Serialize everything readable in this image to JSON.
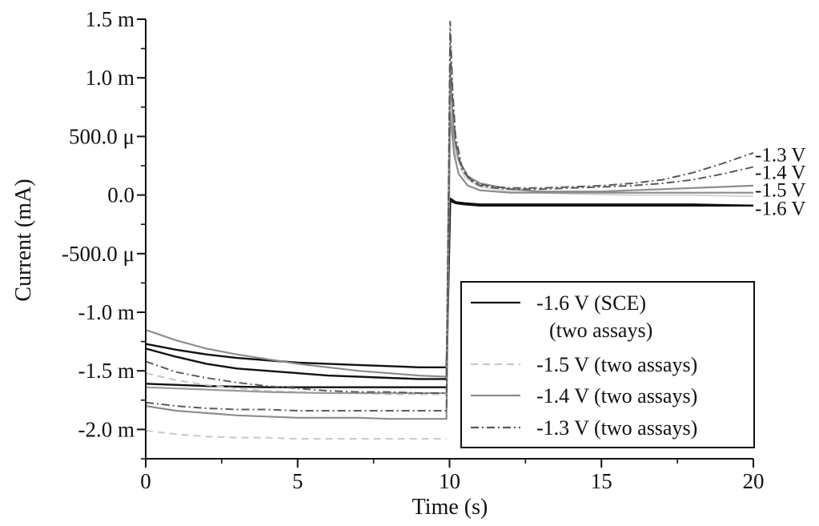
{
  "chart_data": {
    "type": "line",
    "xlabel": "Time (s)",
    "ylabel": "Current (mA)",
    "xlim": [
      0,
      20
    ],
    "ylim": [
      -2.25,
      1.5
    ],
    "x_ticks": [
      {
        "value": 0,
        "label": "0"
      },
      {
        "value": 5,
        "label": "5"
      },
      {
        "value": 10,
        "label": "10"
      },
      {
        "value": 15,
        "label": "15"
      },
      {
        "value": 20,
        "label": "20"
      }
    ],
    "y_ticks": [
      {
        "value": 1.5,
        "label": "1.5 m"
      },
      {
        "value": 1.0,
        "label": "1.0 m"
      },
      {
        "value": 0.5,
        "label": "500.0 μ"
      },
      {
        "value": 0.0,
        "label": "0.0"
      },
      {
        "value": -0.5,
        "label": "-500.0 μ"
      },
      {
        "value": -1.0,
        "label": "-1.0 m"
      },
      {
        "value": -1.5,
        "label": "-1.5 m"
      },
      {
        "value": -2.0,
        "label": "-2.0 m"
      }
    ],
    "grid": false,
    "legend_position": "bottom-right",
    "legend": [
      {
        "label": "-1.6 V (SCE)",
        "label2": "(two assays)",
        "color": "#111111",
        "dash": "solid"
      },
      {
        "label": "-1.5 V (two assays)",
        "color": "#c8c8c8",
        "dash": "dashed"
      },
      {
        "label": "-1.4 V (two assays)",
        "color": "#8c8c8c",
        "dash": "solid"
      },
      {
        "label": "-1.3 V (two assays)",
        "color": "#5a5a5a",
        "dash": "dashdot"
      }
    ],
    "end_labels": [
      {
        "text": "-1.3 V",
        "y": 0.35
      },
      {
        "text": "-1.4 V",
        "y": 0.2
      },
      {
        "text": "-1.5 V",
        "y": 0.05
      },
      {
        "text": "-1.6 V",
        "y": -0.11
      }
    ],
    "series": [
      {
        "name": "-1.6 V (SCE)",
        "color": "#111111",
        "dash": "solid",
        "width": 2.4,
        "x": [
          0,
          1,
          2,
          3,
          4,
          5,
          6,
          7,
          8,
          9,
          9.9,
          10.02,
          10.2,
          10.5,
          11,
          12,
          14,
          16,
          18,
          20
        ],
        "y": [
          -1.27,
          -1.32,
          -1.36,
          -1.39,
          -1.41,
          -1.43,
          -1.44,
          -1.45,
          -1.46,
          -1.47,
          -1.47,
          -0.03,
          -0.06,
          -0.07,
          -0.08,
          -0.08,
          -0.08,
          -0.08,
          -0.08,
          -0.09
        ]
      },
      {
        "name": "-1.6 V (SCE)",
        "color": "#111111",
        "dash": "solid",
        "width": 2.4,
        "x": [
          0,
          1,
          2,
          3,
          4,
          5,
          6,
          7,
          8,
          9,
          9.9,
          10.02,
          10.2,
          10.5,
          11,
          12,
          14,
          16,
          18,
          20
        ],
        "y": [
          -1.31,
          -1.38,
          -1.44,
          -1.48,
          -1.5,
          -1.52,
          -1.54,
          -1.55,
          -1.56,
          -1.57,
          -1.57,
          -0.05,
          -0.07,
          -0.08,
          -0.09,
          -0.09,
          -0.09,
          -0.09,
          -0.09,
          -0.09
        ]
      },
      {
        "name": "-1.6 V (SCE)",
        "color": "#111111",
        "dash": "solid",
        "width": 2.4,
        "x": [
          0,
          2,
          4,
          6,
          8,
          9.9
        ],
        "y": [
          -1.61,
          -1.63,
          -1.64,
          -1.64,
          -1.64,
          -1.64
        ]
      },
      {
        "name": "-1.5 V",
        "color": "#c8c8c8",
        "dash": "dashed",
        "width": 2,
        "x": [
          0,
          1,
          2,
          3,
          4,
          5,
          6,
          7,
          8,
          9,
          9.9
        ],
        "y": [
          -2.01,
          -2.04,
          -2.06,
          -2.07,
          -2.07,
          -2.08,
          -2.08,
          -2.08,
          -2.08,
          -2.08,
          -2.08
        ]
      },
      {
        "name": "-1.5 V",
        "color": "#c8c8c8",
        "dash": "dashed",
        "width": 2,
        "x": [
          0,
          1,
          2,
          3,
          4,
          5,
          6,
          7,
          8,
          9,
          9.9
        ],
        "y": [
          -1.52,
          -1.58,
          -1.62,
          -1.65,
          -1.67,
          -1.68,
          -1.69,
          -1.69,
          -1.7,
          -1.7,
          -1.7
        ]
      },
      {
        "name": "-1.5 V",
        "color": "#d4d4d4",
        "dash": "solid",
        "width": 2,
        "x": [
          10.02,
          10.2,
          10.5,
          11,
          12,
          14,
          16,
          18,
          20
        ],
        "y": [
          0.85,
          0.35,
          0.15,
          0.07,
          0.03,
          0.01,
          0.0,
          0.0,
          -0.01
        ]
      },
      {
        "name": "-1.4 V",
        "color": "#8c8c8c",
        "dash": "solid",
        "width": 2.2,
        "x": [
          0,
          1,
          2,
          3,
          4,
          5,
          6,
          7,
          8,
          9,
          9.9,
          10.02,
          10.15,
          10.3,
          10.6,
          11,
          12,
          13,
          14,
          15,
          16,
          17,
          18,
          19,
          20
        ],
        "y": [
          -1.15,
          -1.24,
          -1.31,
          -1.36,
          -1.4,
          -1.44,
          -1.47,
          -1.5,
          -1.52,
          -1.54,
          -1.55,
          1.05,
          0.5,
          0.3,
          0.16,
          0.1,
          0.05,
          0.03,
          0.03,
          0.03,
          0.04,
          0.05,
          0.06,
          0.07,
          0.08
        ]
      },
      {
        "name": "-1.4 V",
        "color": "#8c8c8c",
        "dash": "solid",
        "width": 2.2,
        "x": [
          0,
          1,
          2,
          3,
          4,
          5,
          6,
          7,
          8,
          9,
          9.9,
          10.02,
          10.15,
          10.3,
          10.6,
          11,
          12,
          14,
          16,
          18,
          20
        ],
        "y": [
          -1.8,
          -1.84,
          -1.86,
          -1.88,
          -1.89,
          -1.9,
          -1.9,
          -1.9,
          -1.91,
          -1.91,
          -1.91,
          0.7,
          0.35,
          0.18,
          0.08,
          0.04,
          0.02,
          0.02,
          0.02,
          0.02,
          0.02
        ]
      },
      {
        "name": "-1.4 V",
        "color": "#9a9a9a",
        "dash": "solid",
        "width": 2.2,
        "x": [
          0,
          2,
          4,
          6,
          8,
          9.9
        ],
        "y": [
          -1.64,
          -1.66,
          -1.68,
          -1.69,
          -1.69,
          -1.69
        ]
      },
      {
        "name": "-1.3 V",
        "color": "#5a5a5a",
        "dash": "dashdot",
        "width": 2,
        "x": [
          0,
          1,
          2,
          3,
          4,
          5,
          6,
          7,
          8,
          9,
          9.9,
          10.02,
          10.1,
          10.2,
          10.4,
          10.7,
          11,
          11.5,
          12,
          13,
          14,
          15,
          16,
          17,
          18,
          19,
          20
        ],
        "y": [
          -1.42,
          -1.51,
          -1.56,
          -1.6,
          -1.63,
          -1.65,
          -1.67,
          -1.68,
          -1.68,
          -1.69,
          -1.69,
          1.48,
          0.9,
          0.5,
          0.25,
          0.13,
          0.09,
          0.07,
          0.06,
          0.06,
          0.07,
          0.08,
          0.1,
          0.13,
          0.19,
          0.27,
          0.36
        ]
      },
      {
        "name": "-1.3 V",
        "color": "#5a5a5a",
        "dash": "dashdot",
        "width": 2,
        "x": [
          0,
          1,
          2,
          3,
          4,
          5,
          6,
          7,
          8,
          9,
          9.9,
          10.02,
          10.1,
          10.2,
          10.4,
          10.7,
          11,
          11.5,
          12,
          13,
          14,
          15,
          16,
          17,
          18,
          19,
          20
        ],
        "y": [
          -1.77,
          -1.8,
          -1.82,
          -1.83,
          -1.83,
          -1.84,
          -1.84,
          -1.84,
          -1.84,
          -1.84,
          -1.84,
          1.3,
          0.8,
          0.45,
          0.22,
          0.12,
          0.08,
          0.06,
          0.05,
          0.05,
          0.06,
          0.07,
          0.08,
          0.1,
          0.13,
          0.18,
          0.24
        ]
      }
    ]
  }
}
